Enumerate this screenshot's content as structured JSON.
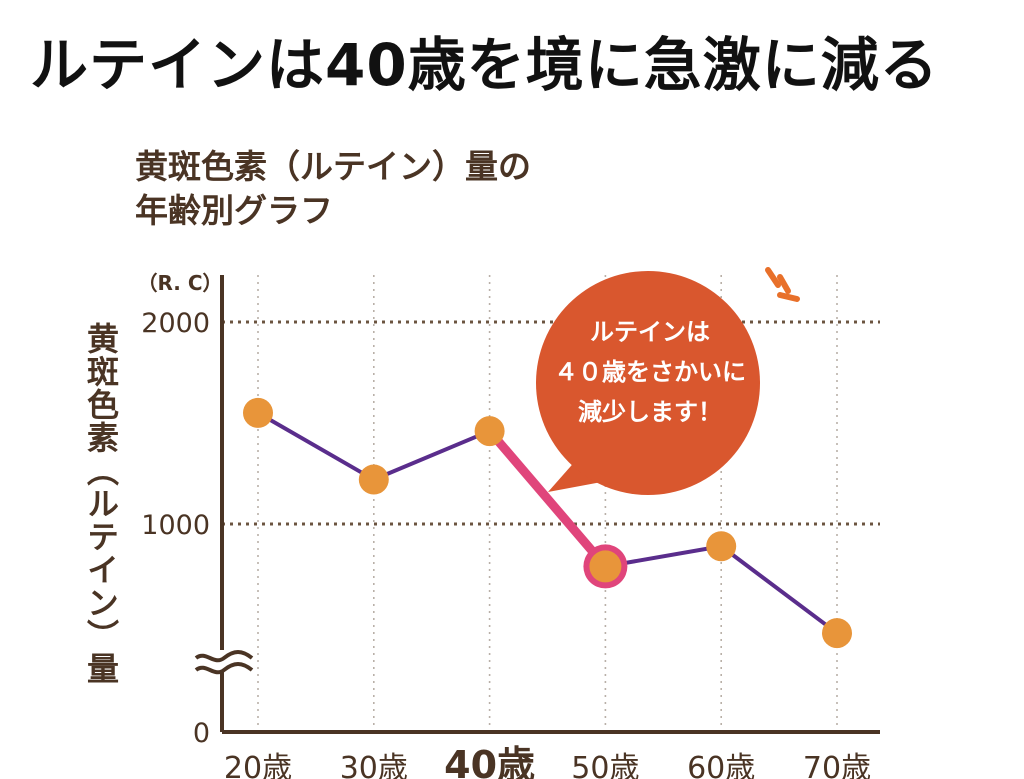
{
  "headline": "ルテインは40歳を境に急激に減る",
  "chart_data": {
    "type": "line",
    "title_line1": "黄斑色素（ルテイン）量の",
    "title_line2": "年齢別グラフ",
    "ylabel": "黄斑色素（ルテイン）量",
    "yunit": "（R. C）",
    "yticks": [
      "2000",
      "1000",
      "0"
    ],
    "categories": [
      "20歳",
      "30歳",
      "40歳",
      "50歳",
      "60歳",
      "70歳"
    ],
    "values": [
      1550,
      1220,
      1460,
      790,
      890,
      460
    ],
    "highlight": {
      "from": "40歳",
      "to": "50歳"
    },
    "annotation": [
      "ルテインは",
      "４０歳をさかいに",
      "減少します！"
    ],
    "ylim": [
      0,
      2000
    ],
    "axis_break": true,
    "grid": true,
    "colors": {
      "line": "#5a2d8c",
      "highlight": "#e0457b",
      "marker": "#e8953a",
      "bubble": "#d9572e",
      "axis": "#4a3424",
      "accent": "#e8702a"
    }
  }
}
